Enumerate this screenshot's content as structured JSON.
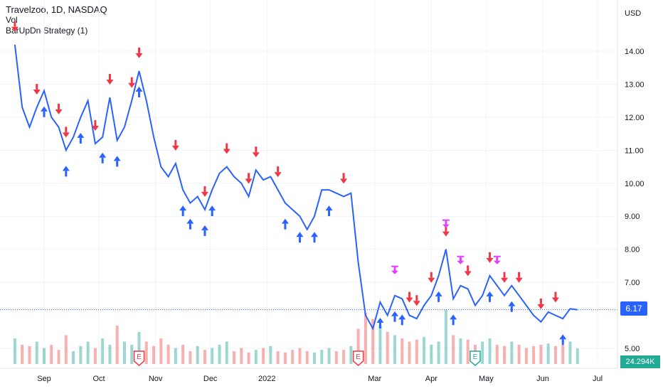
{
  "legend": {
    "symbol": "Travelzoo, 1D, NASDAQ",
    "volume": "Vol",
    "strategy": "BarUpDn Strategy (1)"
  },
  "axis": {
    "currency": "USD",
    "y_ticks": [
      "14.00",
      "13.00",
      "12.00",
      "11.00",
      "10.00",
      "9.00",
      "8.00",
      "7.00",
      "5.00"
    ],
    "x_ticks": [
      "Sep",
      "Oct",
      "Nov",
      "Dec",
      "2022",
      "Mar",
      "Apr",
      "May",
      "Jun",
      "Jul"
    ]
  },
  "last_price": "6.17",
  "last_volume": "24.294K",
  "colors": {
    "line": "#2962ff",
    "long_entry": "#2962ff",
    "short_entry": "#f23645",
    "close_marker": "#e040fb",
    "volume_up": "#26a69a",
    "volume_down": "#ef5350",
    "earnings": "#f23645",
    "earnings_alt": "#22ab94"
  },
  "chart_data": {
    "type": "line",
    "title": "Travelzoo, 1D, NASDAQ",
    "xlabel": "",
    "ylabel": "USD",
    "ylim": [
      4.7,
      14.8
    ],
    "grid": true,
    "series": [
      {
        "name": "Travelzoo",
        "x": [
          "2021-08-16",
          "2021-08-20",
          "2021-08-24",
          "2021-08-28",
          "2021-09-01",
          "2021-09-05",
          "2021-09-09",
          "2021-09-13",
          "2021-09-17",
          "2021-09-21",
          "2021-09-25",
          "2021-09-29",
          "2021-10-03",
          "2021-10-07",
          "2021-10-11",
          "2021-10-15",
          "2021-10-19",
          "2021-10-23",
          "2021-10-27",
          "2021-10-31",
          "2021-11-04",
          "2021-11-08",
          "2021-11-12",
          "2021-11-16",
          "2021-11-20",
          "2021-11-24",
          "2021-11-28",
          "2021-12-02",
          "2021-12-06",
          "2021-12-10",
          "2021-12-14",
          "2021-12-18",
          "2021-12-22",
          "2021-12-26",
          "2021-12-30",
          "2022-01-03",
          "2022-01-07",
          "2022-01-11",
          "2022-01-15",
          "2022-01-19",
          "2022-01-23",
          "2022-01-27",
          "2022-01-31",
          "2022-02-04",
          "2022-02-08",
          "2022-02-12",
          "2022-02-16",
          "2022-02-20",
          "2022-02-24",
          "2022-02-28",
          "2022-03-04",
          "2022-03-08",
          "2022-03-12",
          "2022-03-16",
          "2022-03-20",
          "2022-03-24",
          "2022-03-28",
          "2022-04-01",
          "2022-04-05",
          "2022-04-09",
          "2022-04-13",
          "2022-04-17",
          "2022-04-21",
          "2022-04-25",
          "2022-04-29",
          "2022-05-03",
          "2022-05-07",
          "2022-05-11",
          "2022-05-15",
          "2022-05-19",
          "2022-05-23",
          "2022-05-27",
          "2022-05-31",
          "2022-06-04",
          "2022-06-08",
          "2022-06-12",
          "2022-06-16",
          "2022-06-20"
        ],
        "values": [
          14.2,
          12.3,
          11.7,
          12.3,
          12.8,
          12.0,
          11.7,
          11.0,
          11.4,
          12.0,
          12.5,
          11.2,
          11.4,
          12.6,
          11.3,
          11.7,
          12.5,
          13.4,
          12.5,
          11.4,
          10.5,
          10.2,
          10.6,
          9.8,
          9.4,
          9.6,
          9.2,
          9.8,
          10.3,
          10.5,
          10.2,
          10.0,
          9.6,
          10.4,
          10.1,
          10.2,
          9.8,
          9.4,
          9.2,
          9.0,
          8.6,
          9.0,
          9.8,
          9.8,
          9.7,
          9.6,
          9.7,
          7.6,
          6.0,
          5.6,
          6.4,
          6.0,
          6.6,
          6.5,
          6.0,
          5.9,
          6.3,
          6.6,
          7.2,
          8.0,
          6.5,
          6.9,
          6.8,
          6.3,
          6.6,
          7.2,
          6.9,
          6.6,
          6.9,
          6.6,
          6.3,
          6.0,
          5.8,
          6.1,
          6.0,
          5.9,
          6.2,
          6.17
        ]
      }
    ],
    "volume": {
      "name": "Vol",
      "x": [
        "2021-08-16",
        "2021-08-20",
        "2021-08-24",
        "2021-08-28",
        "2021-09-01",
        "2021-09-05",
        "2021-09-09",
        "2021-09-13",
        "2021-09-17",
        "2021-09-21",
        "2021-09-25",
        "2021-09-29",
        "2021-10-03",
        "2021-10-07",
        "2021-10-11",
        "2021-10-15",
        "2021-10-19",
        "2021-10-23",
        "2021-10-27",
        "2021-10-31",
        "2021-11-04",
        "2021-11-08",
        "2021-11-12",
        "2021-11-16",
        "2021-11-20",
        "2021-11-24",
        "2021-11-28",
        "2021-12-02",
        "2021-12-06",
        "2021-12-10",
        "2021-12-14",
        "2021-12-18",
        "2021-12-22",
        "2021-12-26",
        "2021-12-30",
        "2022-01-03",
        "2022-01-07",
        "2022-01-11",
        "2022-01-15",
        "2022-01-19",
        "2022-01-23",
        "2022-01-27",
        "2022-01-31",
        "2022-02-04",
        "2022-02-08",
        "2022-02-12",
        "2022-02-16",
        "2022-02-20",
        "2022-02-24",
        "2022-02-28",
        "2022-03-04",
        "2022-03-08",
        "2022-03-12",
        "2022-03-16",
        "2022-03-20",
        "2022-03-24",
        "2022-03-28",
        "2022-04-01",
        "2022-04-05",
        "2022-04-09",
        "2022-04-13",
        "2022-04-17",
        "2022-04-21",
        "2022-04-25",
        "2022-04-29",
        "2022-05-03",
        "2022-05-07",
        "2022-05-11",
        "2022-05-15",
        "2022-05-19",
        "2022-05-23",
        "2022-05-27",
        "2022-05-31",
        "2022-06-04",
        "2022-06-08",
        "2022-06-12",
        "2022-06-16",
        "2022-06-20"
      ],
      "values": [
        40,
        30,
        28,
        35,
        25,
        30,
        22,
        45,
        20,
        28,
        35,
        25,
        40,
        30,
        60,
        35,
        30,
        50,
        35,
        28,
        40,
        30,
        25,
        30,
        20,
        28,
        22,
        25,
        30,
        35,
        20,
        25,
        18,
        22,
        25,
        28,
        20,
        18,
        22,
        25,
        20,
        18,
        22,
        25,
        20,
        22,
        28,
        55,
        80,
        70,
        60,
        50,
        45,
        40,
        35,
        38,
        42,
        30,
        35,
        85,
        45,
        40,
        38,
        30,
        35,
        40,
        30,
        28,
        35,
        30,
        25,
        28,
        30,
        32,
        28,
        30,
        35,
        24.3
      ],
      "up": [
        true,
        false,
        false,
        true,
        true,
        false,
        false,
        false,
        true,
        true,
        true,
        false,
        true,
        true,
        false,
        true,
        true,
        true,
        false,
        false,
        false,
        false,
        true,
        false,
        false,
        true,
        false,
        true,
        true,
        true,
        false,
        false,
        false,
        true,
        false,
        true,
        false,
        false,
        false,
        false,
        false,
        true,
        true,
        true,
        false,
        false,
        true,
        false,
        false,
        false,
        true,
        false,
        true,
        false,
        false,
        false,
        true,
        true,
        true,
        true,
        false,
        true,
        false,
        false,
        true,
        true,
        false,
        false,
        true,
        false,
        false,
        false,
        false,
        true,
        false,
        false,
        true,
        true
      ]
    },
    "signals": {
      "long_entries": [
        "2021-09-01",
        "2021-09-13",
        "2021-09-21",
        "2021-10-03",
        "2021-10-11",
        "2021-10-23",
        "2021-11-16",
        "2021-11-20",
        "2021-11-28",
        "2021-12-02",
        "2022-01-11",
        "2022-01-19",
        "2022-01-27",
        "2022-02-04",
        "2022-03-04",
        "2022-03-12",
        "2022-03-16",
        "2022-04-05",
        "2022-04-13",
        "2022-05-03",
        "2022-05-15",
        "2022-06-12"
      ],
      "short_entries": [
        "2021-08-16",
        "2021-08-28",
        "2021-09-09",
        "2021-09-13",
        "2021-09-29",
        "2021-10-07",
        "2021-10-19",
        "2021-10-23",
        "2021-11-12",
        "2021-11-28",
        "2021-12-10",
        "2021-12-22",
        "2021-12-26",
        "2022-01-07",
        "2022-02-12",
        "2022-03-20",
        "2022-03-24",
        "2022-04-01",
        "2022-04-09",
        "2022-04-21",
        "2022-05-03",
        "2022-05-11",
        "2022-05-19",
        "2022-05-31",
        "2022-06-08"
      ],
      "close_markers": [
        "2022-03-12",
        "2022-04-09",
        "2022-04-17",
        "2022-05-07"
      ]
    },
    "earnings": [
      {
        "x": "2021-10-23",
        "label": "E"
      },
      {
        "x": "2022-02-20",
        "label": "E"
      },
      {
        "x": "2022-04-25",
        "label": "E"
      }
    ]
  }
}
